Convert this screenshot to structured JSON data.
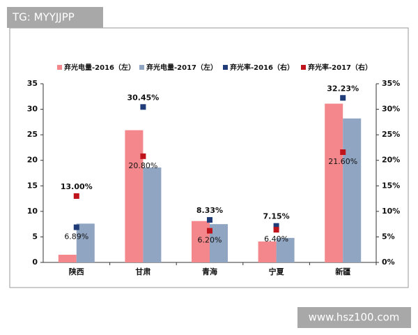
{
  "watermarks": [
    "TG: MYYJJPP",
    "www.hsz100.com"
  ],
  "chart_data": {
    "type": "bar",
    "categories": [
      "陕西",
      "甘肃",
      "青海",
      "宁夏",
      "新疆"
    ],
    "series": [
      {
        "name": "弃光电量-2016（左）",
        "type": "bar",
        "color": "#f4878b",
        "values": [
          1.5,
          25.9,
          8.1,
          4.1,
          31.1
        ]
      },
      {
        "name": "弃光电量-2017（左）",
        "type": "bar",
        "color": "#8fa5c2",
        "values": [
          7.6,
          18.6,
          7.5,
          4.8,
          28.2
        ]
      },
      {
        "name": "弃光率-2016（右）",
        "type": "scatter",
        "axis": "y2",
        "color": "#1f3c78",
        "values": [
          6.89,
          30.45,
          8.33,
          7.15,
          32.23
        ],
        "value_labels": [
          "6.89%",
          "30.45%",
          "8.33%",
          "7.15%",
          "32.23%"
        ]
      },
      {
        "name": "弃光率-2017（右）",
        "type": "scatter",
        "axis": "y2",
        "color": "#c0141c",
        "values": [
          13.0,
          20.8,
          6.2,
          6.4,
          21.6
        ],
        "value_labels": [
          "13.00%",
          "20.80%",
          "6.20%",
          "6.40%",
          "21.60%"
        ]
      }
    ],
    "ylim": [
      0,
      35
    ],
    "yticks": [
      0,
      5,
      10,
      15,
      20,
      25,
      30,
      35
    ],
    "y2lim": [
      0,
      35
    ],
    "y2ticks": [
      {
        "value": 0,
        "label": "0%"
      },
      {
        "value": 5,
        "label": "5%"
      },
      {
        "value": 10,
        "label": "10%"
      },
      {
        "value": 15,
        "label": "15%"
      },
      {
        "value": 20,
        "label": "20%"
      },
      {
        "value": 25,
        "label": "25%"
      },
      {
        "value": 30,
        "label": "30%"
      },
      {
        "value": 35,
        "label": "35%"
      }
    ]
  }
}
